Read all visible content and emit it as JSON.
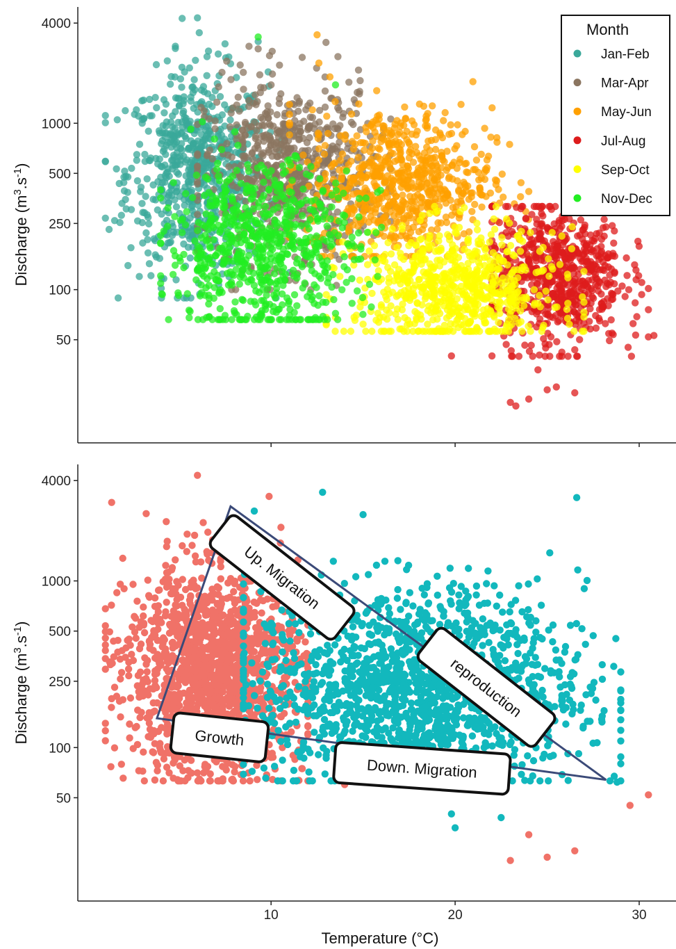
{
  "chart_data": [
    {
      "type": "scatter",
      "ylabel_text": "Discharge (m",
      "ylabel_sup1": "3",
      "ylabel_mid": ".s",
      "ylabel_sup2": "-1",
      "ylabel_end": ")",
      "y_scale": "log",
      "ylim": [
        12,
        5000
      ],
      "xlim": [
        -0.5,
        32
      ],
      "y_ticks": [
        4000,
        1000,
        500,
        250,
        100,
        50
      ],
      "x_ticks": [
        10,
        20,
        30
      ],
      "x_tick_labels_shown": false,
      "legend": {
        "title": "Month",
        "placement": "top-right",
        "entries": [
          {
            "label": "Jan-Feb",
            "color": "#3aa89a"
          },
          {
            "label": "Mar-Apr",
            "color": "#8b7560"
          },
          {
            "label": "May-Jun",
            "color": "#ffa000"
          },
          {
            "label": "Jul-Aug",
            "color": "#dd1c1c"
          },
          {
            "label": "Sep-Oct",
            "color": "#ffff00"
          },
          {
            "label": "Nov-Dec",
            "color": "#22ee22"
          }
        ]
      },
      "series": [
        {
          "name": "Jan-Feb",
          "color": "#3aa89a",
          "cluster": {
            "x_mean": 6,
            "x_sd": 1.9,
            "logy_mean": 2.7,
            "logy_sd": 0.3,
            "x_range": [
              1,
              11
            ],
            "logy_range": [
              1.95,
              3.63
            ]
          },
          "points": [
            [
              1.2,
              230
            ],
            [
              1.5,
              260
            ],
            [
              2.0,
              440
            ],
            [
              6.0,
              4300
            ],
            [
              6.1,
              3500
            ],
            [
              4.8,
              2900
            ],
            [
              7.5,
              3000
            ],
            [
              9.3,
              3100
            ],
            [
              3.0,
              1000
            ],
            [
              4.2,
              700
            ]
          ]
        },
        {
          "name": "Mar-Apr",
          "color": "#8b7560",
          "cluster": {
            "x_mean": 11,
            "x_sd": 2.3,
            "logy_mean": 2.7,
            "logy_sd": 0.27,
            "x_range": [
              6,
              16.5
            ],
            "logy_range": [
              2.0,
              3.5
            ]
          },
          "points": [
            [
              8.8,
              2900
            ],
            [
              9.3,
              2800
            ],
            [
              14.8,
              1500
            ],
            [
              10,
              1700
            ]
          ]
        },
        {
          "name": "May-Jun",
          "color": "#ffa000",
          "cluster": {
            "x_mean": 17,
            "x_sd": 2.5,
            "logy_mean": 2.65,
            "logy_sd": 0.22,
            "x_range": [
              11,
              24
            ],
            "logy_range": [
              2.2,
              3.5
            ]
          },
          "points": [
            [
              12.5,
              3400
            ],
            [
              12.6,
              2300
            ],
            [
              13.2,
              1900
            ],
            [
              22.8,
              260
            ],
            [
              23.5,
              200
            ]
          ]
        },
        {
          "name": "Jul-Aug",
          "color": "#dd1c1c",
          "cluster": {
            "x_mean": 25.5,
            "x_sd": 1.8,
            "logy_mean": 2.1,
            "logy_sd": 0.22,
            "x_range": [
              22,
              30.5
            ],
            "logy_range": [
              1.6,
              2.5
            ]
          },
          "points": [
            [
              23,
              21
            ],
            [
              23.3,
              20
            ],
            [
              24,
              22
            ],
            [
              25,
              25
            ],
            [
              26.5,
              24
            ],
            [
              19.8,
              40
            ],
            [
              30.5,
              52
            ],
            [
              30.8,
              53
            ],
            [
              29.4,
              45
            ],
            [
              22,
              40
            ],
            [
              24.5,
              33
            ],
            [
              25.5,
              26
            ]
          ]
        },
        {
          "name": "Sep-Oct",
          "color": "#ffff00",
          "cluster": {
            "x_mean": 20,
            "x_sd": 2.7,
            "logy_mean": 2.0,
            "logy_sd": 0.18,
            "x_range": [
              13,
              27
            ],
            "logy_range": [
              1.75,
              2.5
            ]
          },
          "points": [
            [
              13.5,
              68
            ],
            [
              15,
              62
            ],
            [
              17,
              58
            ],
            [
              18.5,
              62
            ],
            [
              25.8,
              210
            ]
          ]
        },
        {
          "name": "Nov-Dec",
          "color": "#22ee22",
          "cluster": {
            "x_mean": 9.5,
            "x_sd": 2.6,
            "logy_mean": 2.25,
            "logy_sd": 0.25,
            "x_range": [
              4,
              16
            ],
            "logy_range": [
              1.82,
              3.3
            ]
          },
          "points": [
            [
              6.5,
              68
            ],
            [
              7.5,
              70
            ],
            [
              9.5,
              70
            ],
            [
              11,
              70
            ],
            [
              13.5,
              72
            ],
            [
              9.3,
              3300
            ],
            [
              13.5,
              1700
            ]
          ]
        }
      ]
    },
    {
      "type": "scatter",
      "xlabel": "Temperature (°C)",
      "ylabel_text": "Discharge (m",
      "ylabel_sup1": "3",
      "ylabel_mid": ".s",
      "ylabel_sup2": "-1",
      "ylabel_end": ")",
      "y_scale": "log",
      "ylim": [
        12,
        5000
      ],
      "xlim": [
        -0.5,
        32
      ],
      "y_ticks": [
        4000,
        1000,
        500,
        250,
        100,
        50
      ],
      "x_ticks": [
        10,
        20,
        30
      ],
      "series": [
        {
          "color": "#f07268",
          "cluster": {
            "x_mean": 7,
            "x_sd": 2.4,
            "logy_mean": 2.45,
            "logy_sd": 0.32,
            "x_range": [
              1,
              12
            ],
            "logy_range": [
              1.8,
              3.63
            ]
          },
          "points": [
            [
              6.0,
              4300
            ],
            [
              1.5,
              230
            ],
            [
              2.2,
              440
            ],
            [
              24,
              30
            ],
            [
              23,
              21
            ],
            [
              25,
              22
            ],
            [
              26.5,
              24
            ],
            [
              30.5,
              52
            ],
            [
              29.5,
              45
            ],
            [
              20,
              60
            ],
            [
              14,
              60
            ]
          ]
        },
        {
          "color": "#12b8bd",
          "cluster": {
            "x_mean": 18,
            "x_sd": 4.5,
            "logy_mean": 2.35,
            "logy_sd": 0.3,
            "x_range": [
              8.5,
              29
            ],
            "logy_range": [
              1.8,
              3.5
            ]
          },
          "points": [
            [
              12.8,
              3400
            ],
            [
              15,
              2500
            ],
            [
              19.8,
              40
            ],
            [
              20,
              33
            ],
            [
              22.5,
              38
            ],
            [
              28.8,
              62
            ],
            [
              29,
              80
            ]
          ]
        }
      ],
      "triangle_vertices": [
        [
          7.8,
          2800
        ],
        [
          3.8,
          150
        ],
        [
          28.2,
          64
        ]
      ],
      "annotations": [
        {
          "text": "Up. Migration",
          "x": 10.6,
          "y": 1050,
          "angle": 38
        },
        {
          "text": "reproduction",
          "x": 21.7,
          "y": 230,
          "angle": 38
        },
        {
          "text": "Growth",
          "x": 7.2,
          "y": 115,
          "angle": 6
        },
        {
          "text": "Down. Migration",
          "x": 18.2,
          "y": 75,
          "angle": 4
        }
      ]
    }
  ],
  "colors": {
    "triangle": "#3b4a78",
    "axis": "#222222"
  }
}
